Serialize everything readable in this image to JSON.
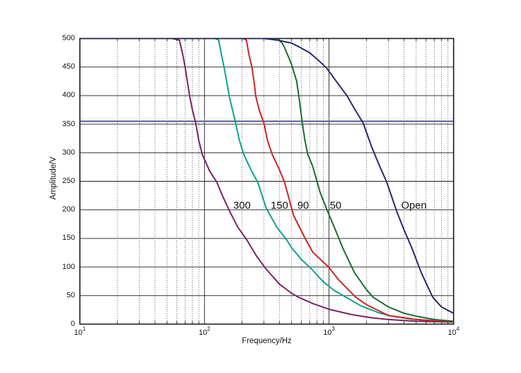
{
  "chart_data": {
    "type": "line",
    "title": "",
    "xlabel": "Frequency/Hz",
    "ylabel": "Amplitude/V",
    "x_scale": "log",
    "xlim": [
      10,
      10000
    ],
    "ylim": [
      0,
      500
    ],
    "grid": {
      "horizontal": "solid",
      "vertical_major": "solid",
      "vertical_minor": "dotted",
      "legend": "none"
    },
    "x_ticks": [
      {
        "label": "10^1",
        "value": 10
      },
      {
        "label": "10^2",
        "value": 100
      },
      {
        "label": "10^3",
        "value": 1000
      },
      {
        "label": "10^4",
        "value": 10000
      }
    ],
    "x_minor_ticks": [
      20,
      30,
      40,
      50,
      60,
      70,
      80,
      90,
      200,
      300,
      400,
      500,
      600,
      700,
      800,
      900,
      2000,
      3000,
      4000,
      5000,
      6000,
      7000,
      8000,
      9000
    ],
    "y_ticks": [
      0,
      50,
      100,
      150,
      200,
      250,
      300,
      350,
      400,
      450,
      500
    ],
    "threshold_lines": [
      {
        "value": 360,
        "color": "#e6e6bd",
        "width": 1
      },
      {
        "value": 355,
        "color": "#6a6ab2",
        "width": 2.4
      }
    ],
    "series": [
      {
        "name": "300",
        "color": "#7b2160",
        "points": [
          [
            10,
            500
          ],
          [
            55,
            500
          ],
          [
            63,
            497
          ],
          [
            67,
            472
          ],
          [
            70,
            449
          ],
          [
            76,
            399
          ],
          [
            80,
            375
          ],
          [
            85,
            352
          ],
          [
            90,
            322
          ],
          [
            96,
            297
          ],
          [
            110,
            268
          ],
          [
            126,
            248
          ],
          [
            140,
            224
          ],
          [
            158,
            199
          ],
          [
            185,
            170
          ],
          [
            218,
            148
          ],
          [
            260,
            120
          ],
          [
            311,
            97
          ],
          [
            400,
            70
          ],
          [
            500,
            54
          ],
          [
            570,
            47
          ],
          [
            740,
            36
          ],
          [
            1000,
            26
          ],
          [
            1500,
            17
          ],
          [
            2200,
            11
          ],
          [
            3000,
            8
          ],
          [
            5000,
            5
          ],
          [
            10000,
            3.5
          ]
        ]
      },
      {
        "name": "150",
        "color": "#0ba18d",
        "points": [
          [
            10,
            500
          ],
          [
            122,
            500
          ],
          [
            130,
            497
          ],
          [
            137,
            471
          ],
          [
            144,
            449
          ],
          [
            151,
            424
          ],
          [
            158,
            399
          ],
          [
            168,
            375
          ],
          [
            178,
            352
          ],
          [
            190,
            323
          ],
          [
            207,
            297
          ],
          [
            235,
            271
          ],
          [
            268,
            248
          ],
          [
            313,
            203
          ],
          [
            380,
            170
          ],
          [
            455,
            148
          ],
          [
            503,
            133
          ],
          [
            600,
            113
          ],
          [
            720,
            97
          ],
          [
            900,
            74
          ],
          [
            1100,
            59
          ],
          [
            1370,
            47
          ],
          [
            1800,
            32
          ],
          [
            2500,
            20
          ],
          [
            3000,
            15
          ],
          [
            4500,
            9
          ],
          [
            7000,
            6
          ],
          [
            10000,
            4
          ]
        ]
      },
      {
        "name": "90",
        "color": "#cc2222",
        "points": [
          [
            10,
            500
          ],
          [
            205,
            500
          ],
          [
            217,
            497
          ],
          [
            228,
            471
          ],
          [
            241,
            449
          ],
          [
            250,
            424
          ],
          [
            258,
            399
          ],
          [
            275,
            375
          ],
          [
            300,
            352
          ],
          [
            320,
            322
          ],
          [
            350,
            297
          ],
          [
            400,
            270
          ],
          [
            440,
            248
          ],
          [
            520,
            190
          ],
          [
            650,
            148
          ],
          [
            740,
            126
          ],
          [
            990,
            100
          ],
          [
            1200,
            77
          ],
          [
            1640,
            47
          ],
          [
            2000,
            34
          ],
          [
            3000,
            15
          ],
          [
            5000,
            8
          ],
          [
            10000,
            3.5
          ]
        ]
      },
      {
        "name": "50",
        "color": "#166b2c",
        "points": [
          [
            10,
            500
          ],
          [
            380,
            500
          ],
          [
            420,
            492
          ],
          [
            440,
            484
          ],
          [
            500,
            455
          ],
          [
            550,
            425
          ],
          [
            580,
            390
          ],
          [
            610,
            352
          ],
          [
            640,
            322
          ],
          [
            675,
            297
          ],
          [
            740,
            276
          ],
          [
            850,
            230
          ],
          [
            975,
            197
          ],
          [
            1100,
            170
          ],
          [
            1290,
            133
          ],
          [
            1600,
            90
          ],
          [
            2000,
            60
          ],
          [
            2260,
            47
          ],
          [
            3000,
            30
          ],
          [
            4000,
            19
          ],
          [
            5000,
            14
          ],
          [
            7000,
            8
          ],
          [
            10000,
            5
          ]
        ]
      },
      {
        "name": "Open",
        "color": "#26266e",
        "points": [
          [
            10,
            500
          ],
          [
            300,
            500
          ],
          [
            390,
            497
          ],
          [
            500,
            492
          ],
          [
            590,
            484
          ],
          [
            700,
            475
          ],
          [
            800,
            464
          ],
          [
            950,
            449
          ],
          [
            1100,
            430
          ],
          [
            1400,
            399
          ],
          [
            1600,
            377
          ],
          [
            1880,
            352
          ],
          [
            2200,
            310
          ],
          [
            2600,
            272
          ],
          [
            2900,
            249
          ],
          [
            3500,
            197
          ],
          [
            4000,
            165
          ],
          [
            4630,
            133
          ],
          [
            5500,
            90
          ],
          [
            6800,
            47
          ],
          [
            8000,
            30
          ],
          [
            9600,
            21
          ],
          [
            10000,
            19
          ]
        ]
      }
    ],
    "curve_labels": [
      {
        "text": "300",
        "f": 200,
        "a": 207
      },
      {
        "text": "150",
        "f": 400,
        "a": 207
      },
      {
        "text": "90",
        "f": 620,
        "a": 207
      },
      {
        "text": "50",
        "f": 1130,
        "a": 207
      },
      {
        "text": "Open",
        "f": 4800,
        "a": 207
      }
    ],
    "colors": {
      "axes": "#1a1a1a",
      "grid_solid": "#1a1a1a",
      "grid_dotted": "#404040",
      "background": "#ffffff"
    }
  }
}
